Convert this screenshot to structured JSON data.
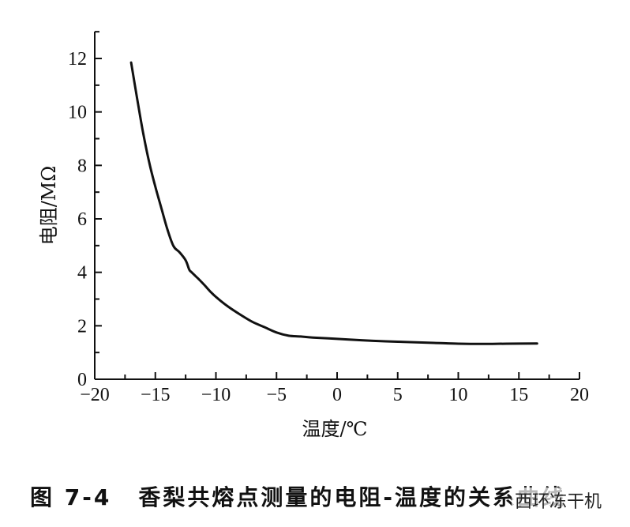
{
  "chart_data": {
    "type": "line",
    "title": "",
    "xlabel": "温度/℃",
    "ylabel": "电阻/MΩ",
    "xlim": [
      -20,
      20
    ],
    "ylim": [
      0,
      13
    ],
    "x_ticks": [
      -20,
      -15,
      -10,
      -5,
      0,
      5,
      10,
      15,
      20
    ],
    "y_ticks": [
      0,
      2,
      4,
      6,
      8,
      10,
      12
    ],
    "x_tick_labels": [
      "−20",
      "−15",
      "−10",
      "−5",
      "0",
      "5",
      "10",
      "15",
      "20"
    ],
    "y_tick_labels": [
      "0",
      "2",
      "4",
      "6",
      "8",
      "10",
      "12"
    ],
    "grid": false,
    "series": [
      {
        "x": [
          -17.0,
          -16.5,
          -16.0,
          -15.5,
          -15.0,
          -14.5,
          -14.0,
          -13.5,
          -13.0,
          -12.5,
          -12.2,
          -12.0,
          -11.5,
          -11.0,
          -10.5,
          -10.0,
          -9.0,
          -8.0,
          -7.0,
          -6.0,
          -5.0,
          -4.0,
          -3.0,
          -2.0,
          0.0,
          2.0,
          4.0,
          6.0,
          8.0,
          10.0,
          12.0,
          14.0,
          16.5
        ],
        "y": [
          11.85,
          10.5,
          9.2,
          8.1,
          7.2,
          6.4,
          5.6,
          4.98,
          4.75,
          4.45,
          4.1,
          4.0,
          3.78,
          3.55,
          3.3,
          3.08,
          2.72,
          2.42,
          2.15,
          1.95,
          1.75,
          1.63,
          1.6,
          1.56,
          1.51,
          1.46,
          1.42,
          1.39,
          1.36,
          1.33,
          1.32,
          1.33,
          1.34
        ]
      }
    ]
  },
  "caption": {
    "figure_number": "图 7-4",
    "text": "香梨共熔点测量的电阻-温度的关系曲线"
  },
  "watermark": {
    "text": "西环冻干机"
  }
}
